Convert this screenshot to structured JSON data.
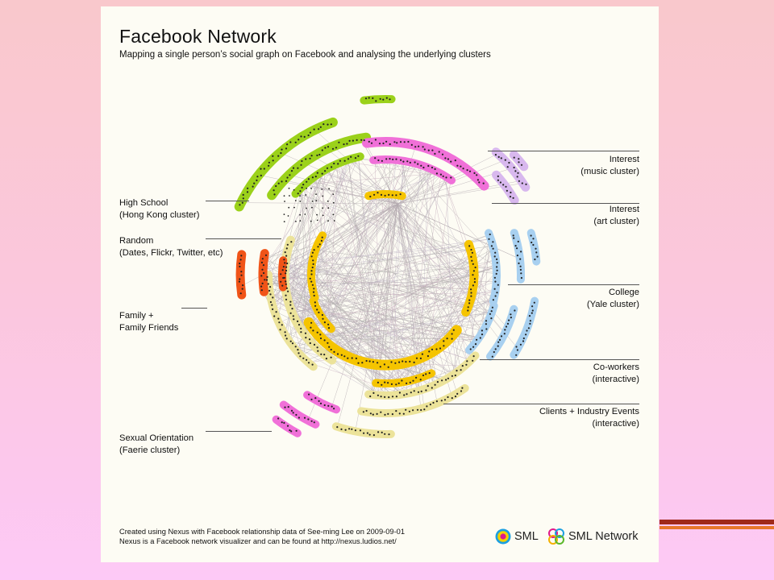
{
  "title": "Facebook Network",
  "subtitle": "Mapping a single person’s social graph on Facebook and analysing the underlying clusters",
  "clusters": {
    "high_school": [
      "High School",
      "(Hong Kong cluster)"
    ],
    "random": [
      "Random",
      "(Dates, Flickr, Twitter, etc)"
    ],
    "family": [
      "Family +",
      "Family Friends"
    ],
    "sexual_orientation": [
      "Sexual Orientation",
      "(Faerie cluster)"
    ],
    "interest_music": [
      "Interest",
      "(music cluster)"
    ],
    "interest_art": [
      "Interest",
      "(art cluster)"
    ],
    "college": [
      "College",
      "(Yale cluster)"
    ],
    "coworkers": [
      "Co-workers",
      "(interactive)"
    ],
    "clients": [
      "Clients + Industry Events",
      "(interactive)"
    ]
  },
  "colors": {
    "high_school": "#9bd11a",
    "random": "#f5c400",
    "random_pale": "#ece39a",
    "family": "#f05418",
    "sexual_orientation": "#f070d8",
    "interest_music": "#d8b8ee",
    "interest_art": "#f070d8",
    "college": "#a8d0f0",
    "coworkers": "#a8d0f0",
    "clients": "#ece39a"
  },
  "footer": {
    "line1": "Created using Nexus with Facebook relationship data of See-ming Lee on 2009-09-01",
    "line2": "Nexus is a Facebook network visualizer and can be found at http://nexus.ludios.net/"
  },
  "brands": {
    "sml": "SML",
    "sml_network": "SML Network"
  }
}
